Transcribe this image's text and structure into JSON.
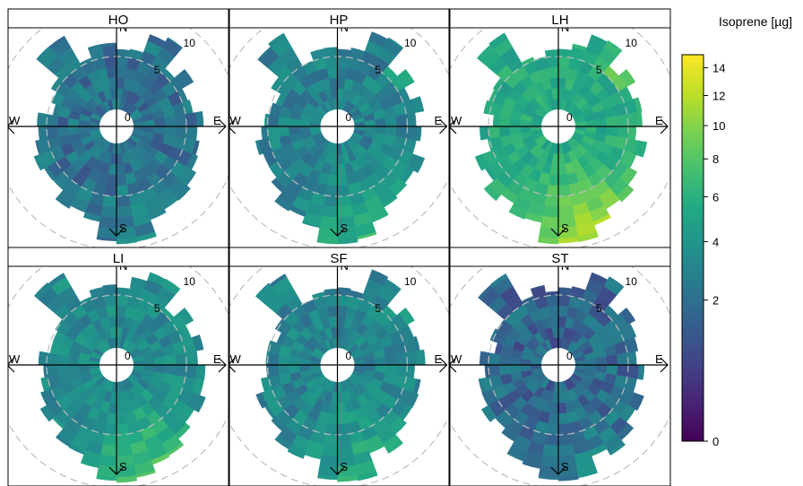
{
  "chart_data": {
    "type": "heatmap",
    "subtype": "polar-annulus",
    "panels": [
      {
        "label": "HO",
        "seed": 11,
        "level": 2.2,
        "boost": 0.6,
        "maxR": 9.0
      },
      {
        "label": "HP",
        "seed": 23,
        "level": 3.0,
        "boost": 2.2,
        "maxR": 9.0
      },
      {
        "label": "LH",
        "seed": 37,
        "level": 5.6,
        "boost": 4.2,
        "maxR": 9.0
      },
      {
        "label": "LI",
        "seed": 41,
        "level": 3.4,
        "boost": 3.0,
        "maxR": 9.0
      },
      {
        "label": "SF",
        "seed": 53,
        "level": 3.1,
        "boost": 2.0,
        "maxR": 9.0
      },
      {
        "label": "ST",
        "seed": 67,
        "level": 1.8,
        "boost": 0.8,
        "maxR": 9.0
      }
    ],
    "compass": {
      "north": "N",
      "east": "E",
      "south": "S",
      "west": "W"
    },
    "radial_labels": [
      "0",
      "5",
      "10"
    ],
    "radial_rings": [
      5,
      10
    ],
    "colorbar": {
      "title": "Isoprene [µg]",
      "ticks": [
        0,
        2,
        4,
        6,
        8,
        10,
        12,
        14
      ],
      "range": [
        0,
        15
      ],
      "scale": "sqrt",
      "palette": "viridis"
    }
  }
}
